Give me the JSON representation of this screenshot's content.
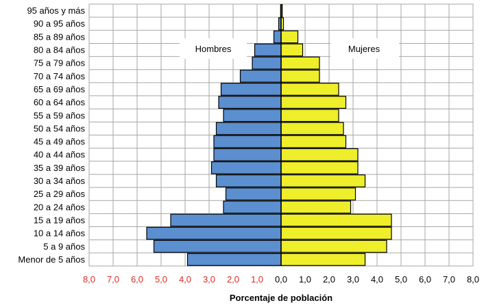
{
  "chart_data": {
    "type": "bar",
    "orientation": "horizontal-diverging",
    "xlabel": "Porcentaje de población",
    "ylabel": "",
    "xlim": [
      -8,
      8
    ],
    "grid": true,
    "legend_placement": "inside-top",
    "categories": [
      "95 años y más",
      "90 a 95 años",
      "85 a 89 años",
      "80 a 84 años",
      "75 a 79 años",
      "70 a 74 años",
      "65 a 69 años",
      "60 a 64 años",
      "55 a 59 años",
      "50 a 54 años",
      "45 a 49 años",
      "40 a 44 años",
      "35 a 39 años",
      "30 a 34 años",
      "25 a 29 años",
      "20 a 24 años",
      "15 a 19 años",
      "10 a 14 años",
      "5 a 9 años",
      "Menor de 5 años"
    ],
    "x_ticks": [
      "8,0",
      "7,0",
      "6,0",
      "5,0",
      "4,0",
      "3,0",
      "2,0",
      "1,0",
      "0,0",
      "1,0",
      "2,0",
      "3,0",
      "4,0",
      "5,0",
      "6,0",
      "7,0",
      "8,0"
    ],
    "series": [
      {
        "name": "Hombres",
        "color": "#5b8fcf",
        "side": "left",
        "values": [
          0.02,
          0.1,
          0.3,
          1.1,
          1.2,
          1.7,
          2.5,
          2.6,
          2.4,
          2.7,
          2.8,
          2.8,
          2.9,
          2.7,
          2.3,
          2.4,
          4.6,
          5.6,
          5.3,
          3.9
        ]
      },
      {
        "name": "Mujeres",
        "color": "#eeee2a",
        "side": "right",
        "values": [
          0.05,
          0.1,
          0.7,
          0.9,
          1.6,
          1.6,
          2.4,
          2.7,
          2.4,
          2.6,
          2.7,
          3.2,
          3.2,
          3.5,
          3.1,
          2.9,
          4.6,
          4.6,
          4.4,
          3.5
        ]
      }
    ],
    "colors": {
      "left_tick": "#e0281e",
      "right_tick": "#000000",
      "grid": "#a6a6a6",
      "bar_border": "#000000"
    }
  }
}
